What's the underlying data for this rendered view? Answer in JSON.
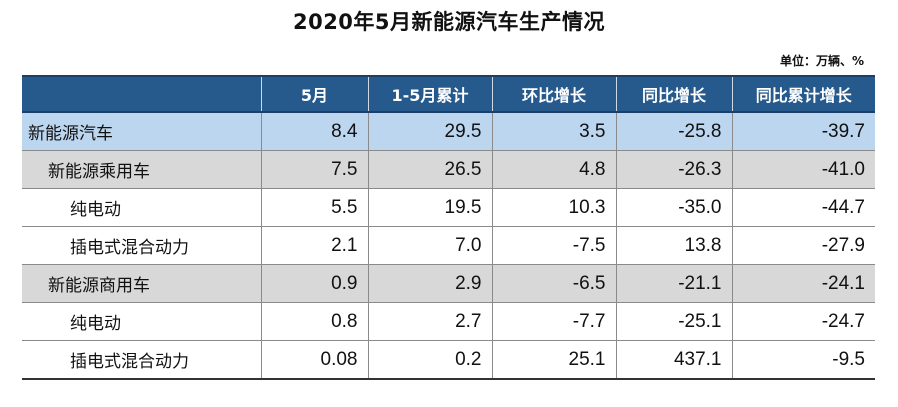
{
  "title": "2020年5月新能源汽车生产情况",
  "unit_note": "单位：万辆、%",
  "columns": [
    "",
    "5月",
    "1-5月累计",
    "环比增长",
    "同比增长",
    "同比累计增长"
  ],
  "rows": [
    {
      "name": "新能源汽车",
      "level": 0,
      "values": [
        "8.4",
        "29.5",
        "3.5",
        "-25.8",
        "-39.7"
      ]
    },
    {
      "name": "新能源乘用车",
      "level": 1,
      "values": [
        "7.5",
        "26.5",
        "4.8",
        "-26.3",
        "-41.0"
      ]
    },
    {
      "name": "纯电动",
      "level": 2,
      "values": [
        "5.5",
        "19.5",
        "10.3",
        "-35.0",
        "-44.7"
      ]
    },
    {
      "name": "插电式混合动力",
      "level": 2,
      "values": [
        "2.1",
        "7.0",
        "-7.5",
        "13.8",
        "-27.9"
      ]
    },
    {
      "name": "新能源商用车",
      "level": 1,
      "values": [
        "0.9",
        "2.9",
        "-6.5",
        "-21.1",
        "-24.1"
      ]
    },
    {
      "name": "纯电动",
      "level": 2,
      "values": [
        "0.8",
        "2.7",
        "-7.7",
        "-25.1",
        "-24.7"
      ]
    },
    {
      "name": "插电式混合动力",
      "level": 2,
      "values": [
        "0.08",
        "0.2",
        "25.1",
        "437.1",
        "-9.5"
      ]
    }
  ],
  "colors": {
    "header_bg": "#265a8c",
    "total_row_bg": "#bcd6ef",
    "category_row_bg": "#d8d8d8",
    "detail_row_bg": "#ffffff"
  }
}
